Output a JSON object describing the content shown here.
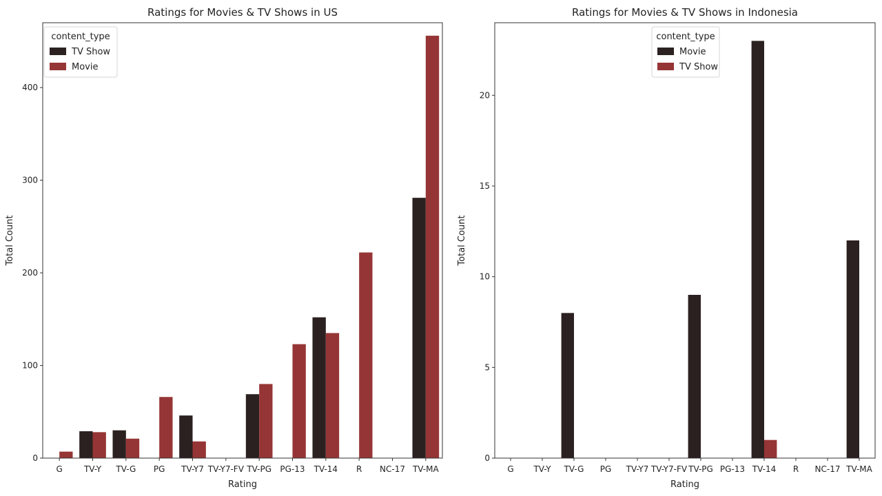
{
  "colors": {
    "dark": "#2b2120",
    "red": "#963535"
  },
  "chart_data": [
    {
      "type": "bar",
      "title": "Ratings for Movies & TV Shows in US",
      "xlabel": "Rating",
      "ylabel": "Total Count",
      "ylim": [
        0,
        470
      ],
      "yticks": [
        0,
        100,
        200,
        300,
        400
      ],
      "categories": [
        "G",
        "TV-Y",
        "TV-G",
        "PG",
        "TV-Y7",
        "TV-Y7-FV",
        "TV-PG",
        "PG-13",
        "TV-14",
        "R",
        "NC-17",
        "TV-MA"
      ],
      "legend": {
        "title": "content_type",
        "position": "top-left"
      },
      "series": [
        {
          "name": "TV Show",
          "color": "#2b2120",
          "values": [
            0,
            29,
            30,
            0,
            46,
            0,
            69,
            0,
            152,
            0,
            0,
            281
          ]
        },
        {
          "name": "Movie",
          "color": "#963535",
          "values": [
            7,
            28,
            21,
            66,
            18,
            0,
            80,
            123,
            135,
            222,
            0,
            456
          ]
        }
      ]
    },
    {
      "type": "bar",
      "title": "Ratings for Movies & TV Shows in Indonesia",
      "xlabel": "Rating",
      "ylabel": "Total Count",
      "ylim": [
        0,
        24
      ],
      "yticks": [
        0,
        5,
        10,
        15,
        20
      ],
      "categories": [
        "G",
        "TV-Y",
        "TV-G",
        "PG",
        "TV-Y7",
        "TV-Y7-FV",
        "TV-PG",
        "PG-13",
        "TV-14",
        "R",
        "NC-17",
        "TV-MA"
      ],
      "legend": {
        "title": "content_type",
        "position": "top-center"
      },
      "series": [
        {
          "name": "Movie",
          "color": "#2b2120",
          "values": [
            0,
            0,
            8,
            0,
            0,
            0,
            9,
            0,
            23,
            0,
            0,
            12
          ]
        },
        {
          "name": "TV Show",
          "color": "#963535",
          "values": [
            0,
            0,
            0,
            0,
            0,
            0,
            0,
            0,
            1,
            0,
            0,
            0
          ]
        }
      ]
    }
  ]
}
